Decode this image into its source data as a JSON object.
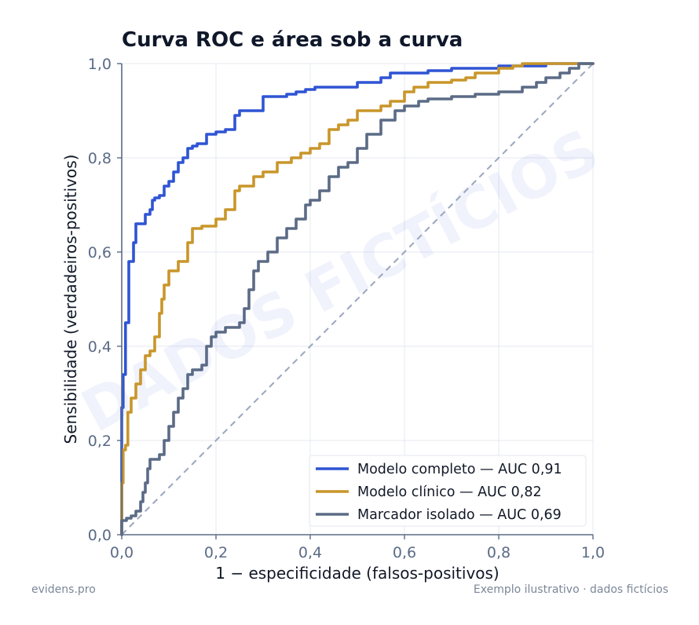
{
  "chart_data": {
    "type": "line",
    "title": "Curva ROC e área sob a curva",
    "xlabel": "1 − especificidade (falsos-positivos)",
    "ylabel": "Sensibilidade (verdadeiros-positivos)",
    "xlim": [
      0,
      1
    ],
    "ylim": [
      0,
      1
    ],
    "xticks": [
      "0,0",
      "0,2",
      "0,4",
      "0,6",
      "0,8",
      "1,0"
    ],
    "yticks": [
      "0,0",
      "0,2",
      "0,4",
      "0,6",
      "0,8",
      "1,0"
    ],
    "grid": true,
    "legend_position": "bottom-right",
    "reference_line": {
      "x": [
        0,
        1
      ],
      "y": [
        0,
        1
      ],
      "style": "dashed",
      "color": "#9aa5bd"
    },
    "series": [
      {
        "name": "Modelo completo — AUC 0,91",
        "color": "#2f54d4",
        "x": [
          0,
          0.0,
          0.003,
          0.008,
          0.008,
          0.015,
          0.015,
          0.025,
          0.03,
          0.04,
          0.05,
          0.06,
          0.065,
          0.07,
          0.075,
          0.08,
          0.09,
          0.1,
          0.11,
          0.12,
          0.13,
          0.14,
          0.15,
          0.16,
          0.18,
          0.2,
          0.22,
          0.24,
          0.25,
          0.27,
          0.3,
          0.32,
          0.35,
          0.37,
          0.39,
          0.41,
          0.45,
          0.5,
          0.55,
          0.57,
          0.6,
          0.65,
          0.7,
          0.75,
          0.8,
          0.85,
          0.9,
          0.95,
          1.0
        ],
        "y": [
          0,
          0.27,
          0.34,
          0.34,
          0.45,
          0.55,
          0.58,
          0.62,
          0.66,
          0.66,
          0.68,
          0.69,
          0.71,
          0.715,
          0.715,
          0.72,
          0.74,
          0.75,
          0.77,
          0.79,
          0.8,
          0.82,
          0.825,
          0.83,
          0.85,
          0.855,
          0.86,
          0.89,
          0.9,
          0.9,
          0.93,
          0.93,
          0.935,
          0.94,
          0.945,
          0.95,
          0.95,
          0.96,
          0.97,
          0.98,
          0.98,
          0.985,
          0.99,
          0.99,
          0.995,
          0.995,
          1.0,
          1.0,
          1.0
        ]
      },
      {
        "name": "Modelo clínico — AUC 0,82",
        "color": "#c9962a",
        "x": [
          0,
          0.0,
          0.003,
          0.008,
          0.013,
          0.02,
          0.03,
          0.04,
          0.05,
          0.06,
          0.07,
          0.08,
          0.085,
          0.09,
          0.1,
          0.12,
          0.14,
          0.15,
          0.17,
          0.2,
          0.22,
          0.24,
          0.25,
          0.28,
          0.3,
          0.33,
          0.36,
          0.38,
          0.4,
          0.42,
          0.44,
          0.46,
          0.48,
          0.5,
          0.52,
          0.55,
          0.57,
          0.6,
          0.62,
          0.65,
          0.7,
          0.73,
          0.75,
          0.8,
          0.83,
          0.85,
          0.9,
          1.0
        ],
        "y": [
          0,
          0.11,
          0.18,
          0.19,
          0.26,
          0.29,
          0.32,
          0.35,
          0.38,
          0.39,
          0.42,
          0.47,
          0.5,
          0.53,
          0.56,
          0.58,
          0.62,
          0.65,
          0.655,
          0.67,
          0.69,
          0.73,
          0.74,
          0.76,
          0.77,
          0.79,
          0.8,
          0.81,
          0.82,
          0.83,
          0.86,
          0.87,
          0.88,
          0.9,
          0.9,
          0.91,
          0.92,
          0.94,
          0.95,
          0.96,
          0.965,
          0.97,
          0.98,
          0.99,
          0.995,
          1.0,
          1.0,
          1.0
        ]
      },
      {
        "name": "Marcador isolado — AUC 0,69",
        "color": "#5b6b86",
        "x": [
          0,
          0.0,
          0.01,
          0.02,
          0.03,
          0.04,
          0.045,
          0.05,
          0.055,
          0.06,
          0.08,
          0.09,
          0.1,
          0.11,
          0.12,
          0.13,
          0.14,
          0.15,
          0.17,
          0.18,
          0.19,
          0.2,
          0.22,
          0.25,
          0.26,
          0.27,
          0.28,
          0.29,
          0.31,
          0.33,
          0.35,
          0.37,
          0.39,
          0.4,
          0.42,
          0.44,
          0.46,
          0.48,
          0.5,
          0.52,
          0.55,
          0.58,
          0.6,
          0.63,
          0.65,
          0.7,
          0.75,
          0.8,
          0.85,
          0.88,
          0.9,
          0.93,
          0.95,
          0.97,
          1.0
        ],
        "y": [
          0,
          0.03,
          0.035,
          0.04,
          0.05,
          0.07,
          0.09,
          0.11,
          0.14,
          0.16,
          0.17,
          0.2,
          0.23,
          0.26,
          0.29,
          0.31,
          0.34,
          0.35,
          0.36,
          0.4,
          0.42,
          0.43,
          0.44,
          0.45,
          0.48,
          0.52,
          0.56,
          0.58,
          0.6,
          0.63,
          0.65,
          0.67,
          0.7,
          0.71,
          0.73,
          0.76,
          0.78,
          0.79,
          0.82,
          0.85,
          0.88,
          0.9,
          0.91,
          0.92,
          0.925,
          0.93,
          0.935,
          0.94,
          0.95,
          0.96,
          0.97,
          0.98,
          0.99,
          1.0,
          1.0
        ]
      }
    ]
  },
  "watermark": "DADOS FICTÍCIOS",
  "footer": {
    "left": "evidens.pro",
    "right": "Exemplo ilustrativo · dados fictícios"
  }
}
